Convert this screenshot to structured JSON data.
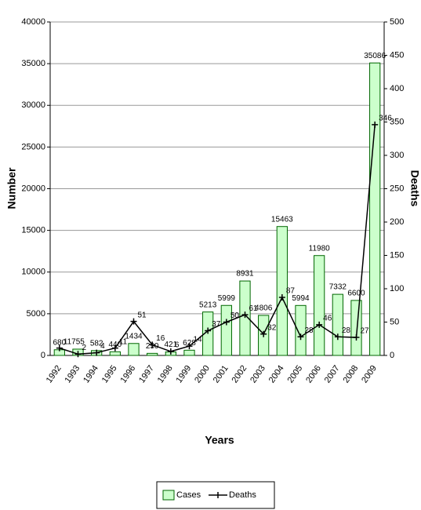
{
  "chart_data": {
    "type": "bar_line",
    "x_label": "Years",
    "y_label": "Number",
    "y2_label": "Deaths",
    "categories": [
      "1992",
      "1993",
      "1994",
      "1995",
      "1996",
      "1997",
      "1998",
      "1999",
      "2000",
      "2001",
      "2002",
      "2003",
      "2004",
      "2005",
      "2006",
      "2007",
      "2008",
      "2009"
    ],
    "series": [
      {
        "name": "Cases",
        "color": "#ccffcc",
        "type": "bar",
        "values": [
          680,
          755,
          582,
          440,
          1434,
          250,
          421,
          628,
          5213,
          5999,
          8931,
          4806,
          15463,
          5994,
          11980,
          7332,
          6600,
          35086
        ]
      },
      {
        "name": "Deaths",
        "color": "#000000",
        "type": "line",
        "axis": "y2",
        "values": [
          11,
          2,
          4,
          11,
          51,
          16,
          6,
          14,
          37,
          50,
          61,
          32,
          87,
          28,
          46,
          28,
          27,
          346
        ]
      }
    ],
    "ylim": [
      0,
      40000
    ],
    "yticks": [
      0,
      5000,
      10000,
      15000,
      20000,
      25000,
      30000,
      35000,
      40000
    ],
    "y2lim": [
      0,
      500
    ],
    "y2ticks": [
      0,
      50,
      100,
      150,
      200,
      250,
      300,
      350,
      400,
      450,
      500
    ],
    "grid": true,
    "legend": "bottom"
  }
}
